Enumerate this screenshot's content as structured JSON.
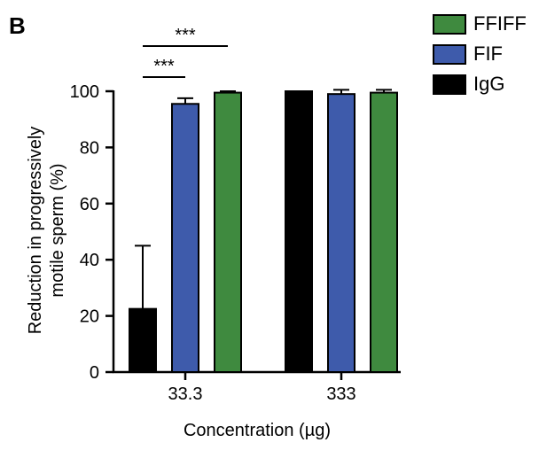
{
  "panel_label": "B",
  "chart_data": {
    "type": "bar",
    "title": "",
    "xlabel": "Concentration (µg)",
    "ylabel_lines": [
      "Reduction in progressively",
      "motile sperm (%)"
    ],
    "ylim": [
      0,
      100
    ],
    "yticks": [
      0,
      20,
      40,
      60,
      80,
      100
    ],
    "categories": [
      "33.3",
      "333"
    ],
    "series": [
      {
        "name": "IgG",
        "color": "#000000",
        "values": [
          22.5,
          100
        ],
        "errors": [
          22.5,
          0
        ]
      },
      {
        "name": "FIF",
        "color": "#3e5bab",
        "values": [
          95.5,
          99
        ],
        "errors": [
          2,
          1.5
        ]
      },
      {
        "name": "FFIFF",
        "color": "#3f8a3f",
        "values": [
          99.5,
          99.5
        ],
        "errors": [
          0.5,
          1
        ]
      }
    ],
    "legend": [
      {
        "name": "FFIFF",
        "color": "#3f8a3f"
      },
      {
        "name": "FIF",
        "color": "#3e5bab"
      },
      {
        "name": "IgG",
        "color": "#000000"
      }
    ],
    "annotations": [
      {
        "label": "***",
        "from_series": "IgG",
        "to_series": "FIF",
        "category": "33.3"
      },
      {
        "label": "***",
        "from_series": "IgG",
        "to_series": "FFIFF",
        "category": "33.3"
      }
    ]
  }
}
